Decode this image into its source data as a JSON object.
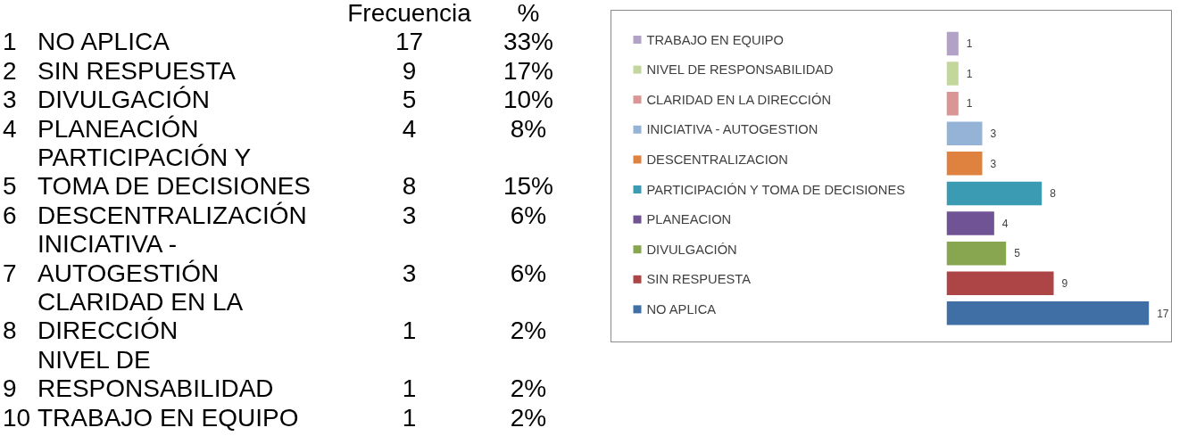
{
  "chart_data": [
    {
      "type": "other",
      "categories": [
        "Frecuencia",
        "%"
      ],
      "y_categories": [
        "1",
        "2",
        "3",
        "4",
        "5",
        "6",
        "7",
        "8",
        "9",
        "10"
      ],
      "y2_categories": [
        "NO APLICA",
        "SIN RESPUESTA",
        "DIVULGACIÓN",
        "PLANEACIÓN",
        "PARTICIPACIÓN Y TOMA DE DECISIONES",
        "DESCENTRALIZACIÓN",
        "INICIATIVA - AUTOGESTIÓN",
        "CLARIDAD EN LA DIRECCIÓN",
        "NIVEL DE RESPONSABILIDAD",
        "TRABAJO EN EQUIPO"
      ],
      "cell_labels": [
        [
          "17",
          "33%"
        ],
        [
          "9",
          "17%"
        ],
        [
          "5",
          "10%"
        ],
        [
          "4",
          "8%"
        ],
        [
          "8",
          "15%"
        ],
        [
          "3",
          "6%"
        ],
        [
          "3",
          "6%"
        ],
        [
          "1",
          "2%"
        ],
        [
          "1",
          "2%"
        ],
        [
          "1",
          "2%"
        ]
      ]
    },
    {
      "type": "bar",
      "orientation": "horizontal",
      "tick_labels": "y",
      "data_labels": true,
      "categories": [
        "TRABAJO EN EQUIPO",
        "NIVEL DE RESPONSABILIDAD",
        "CLARIDAD EN LA DIRECCIÓN",
        "INICIATIVA - AUTOGESTION",
        "DESCENTRALIZACION",
        "PARTICIPACIÓN Y TOMA DE DECISIONES",
        "PLANEACION",
        "DIVULGACIÓN",
        "SIN RESPUESTA",
        "NO APLICA"
      ],
      "values": [
        1,
        1,
        1,
        3,
        3,
        8,
        4,
        5,
        9,
        17
      ],
      "colors": [
        "#b3a2c7",
        "#c3d69b",
        "#d99694",
        "#95b3d7",
        "#e0823f",
        "#3b9bb2",
        "#6f5394",
        "#88a54f",
        "#ad4446",
        "#3f6fa4"
      ]
    }
  ]
}
